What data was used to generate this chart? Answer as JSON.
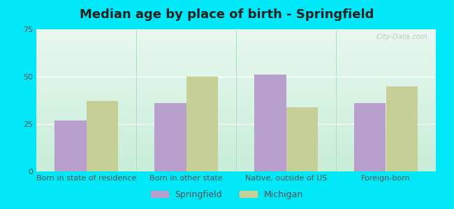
{
  "title": "Median age by place of birth - Springfield",
  "categories": [
    "Born in state of residence",
    "Born in other state",
    "Native, outside of US",
    "Foreign-born"
  ],
  "springfield_values": [
    27,
    36,
    51,
    36
  ],
  "michigan_values": [
    37,
    50,
    34,
    45
  ],
  "springfield_color": "#b89ecb",
  "michigan_color": "#c5cf96",
  "background_outer": "#00e8f8",
  "grad_top": "#e8f8f0",
  "grad_bottom": "#c8edd8",
  "ylim": [
    0,
    75
  ],
  "yticks": [
    0,
    25,
    50,
    75
  ],
  "bar_width": 0.32,
  "legend_labels": [
    "Springfield",
    "Michigan"
  ],
  "title_fontsize": 13,
  "tick_fontsize": 8,
  "legend_fontsize": 9,
  "watermark": "City-Data.com"
}
